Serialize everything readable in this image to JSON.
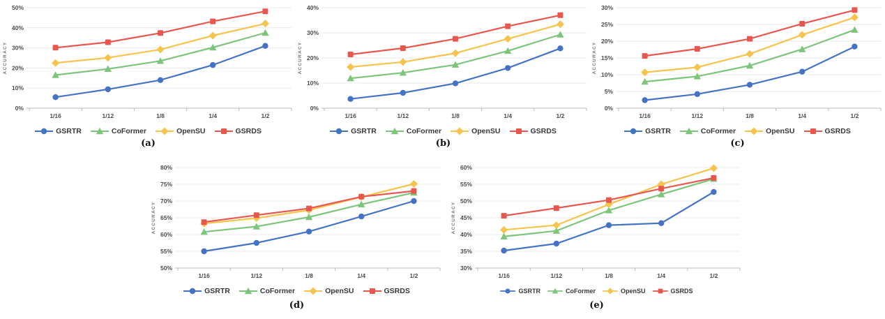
{
  "figure": {
    "ylabel": "ACCURACY",
    "series_styles": [
      {
        "name": "GSRTR",
        "color": "#4472c4",
        "marker": "circle"
      },
      {
        "name": "CoFormer",
        "color": "#7dc57b",
        "marker": "triangle"
      },
      {
        "name": "OpenSU",
        "color": "#f6c44d",
        "marker": "diamond"
      },
      {
        "name": "GSRDS",
        "color": "#e8574d",
        "marker": "square"
      }
    ],
    "grid_color": "#e9e9e9",
    "axis_color": "#b9b9b9",
    "tick_label_color": "#4a4a4a",
    "axis_title_color": "#757575"
  },
  "chart_data": [
    {
      "type": "line",
      "caption": "(a)",
      "ylabel": "ACCURACY",
      "xlabel": "",
      "categories": [
        "1/16",
        "1/12",
        "1/8",
        "1/4",
        "1/2"
      ],
      "ylim": [
        0,
        50
      ],
      "ytick_step": 10,
      "grid": true,
      "legend_position": "bottom",
      "series": [
        {
          "name": "GSRTR",
          "values": [
            5.5,
            9.4,
            14.0,
            21.5,
            31.0
          ]
        },
        {
          "name": "CoFormer",
          "values": [
            16.5,
            19.5,
            23.5,
            30.2,
            37.5
          ]
        },
        {
          "name": "OpenSU",
          "values": [
            22.5,
            25.1,
            29.2,
            36.1,
            42.1
          ]
        },
        {
          "name": "GSRDS",
          "values": [
            30.1,
            32.8,
            37.4,
            43.2,
            48.2
          ]
        }
      ]
    },
    {
      "type": "line",
      "caption": "(b)",
      "ylabel": "ACCURACY",
      "xlabel": "",
      "categories": [
        "1/16",
        "1/12",
        "1/8",
        "1/4",
        "1/2"
      ],
      "ylim": [
        0,
        40
      ],
      "ytick_step": 10,
      "grid": true,
      "legend_position": "bottom",
      "series": [
        {
          "name": "GSRTR",
          "values": [
            3.7,
            6.1,
            9.9,
            16.0,
            23.8
          ]
        },
        {
          "name": "CoFormer",
          "values": [
            11.9,
            14.1,
            17.3,
            22.8,
            29.3
          ]
        },
        {
          "name": "OpenSU",
          "values": [
            16.4,
            18.4,
            21.9,
            27.6,
            33.4
          ]
        },
        {
          "name": "GSRDS",
          "values": [
            21.4,
            23.9,
            27.6,
            32.6,
            37.0
          ]
        }
      ]
    },
    {
      "type": "line",
      "caption": "(c)",
      "ylabel": "ACCURACY",
      "xlabel": "",
      "categories": [
        "1/16",
        "1/12",
        "1/8",
        "1/4",
        "1/2"
      ],
      "ylim": [
        0,
        30
      ],
      "ytick_step": 5,
      "grid": true,
      "legend_position": "bottom",
      "series": [
        {
          "name": "GSRTR",
          "values": [
            2.4,
            4.2,
            7.0,
            10.9,
            18.4
          ]
        },
        {
          "name": "CoFormer",
          "values": [
            7.9,
            9.5,
            12.7,
            17.6,
            23.4
          ]
        },
        {
          "name": "OpenSU",
          "values": [
            10.7,
            12.2,
            16.2,
            21.9,
            27.1
          ]
        },
        {
          "name": "GSRDS",
          "values": [
            15.6,
            17.7,
            20.7,
            25.2,
            29.3
          ]
        }
      ]
    },
    {
      "type": "line",
      "caption": "(d)",
      "ylabel": "ACCURACY",
      "xlabel": "",
      "categories": [
        "1/16",
        "1/12",
        "1/8",
        "1/4",
        "1/2"
      ],
      "ylim": [
        50,
        80
      ],
      "ytick_step": 5,
      "grid": true,
      "legend_position": "bottom",
      "series": [
        {
          "name": "GSRTR",
          "values": [
            55.0,
            57.5,
            60.9,
            65.4,
            70.0
          ]
        },
        {
          "name": "CoFormer",
          "values": [
            60.8,
            62.4,
            65.2,
            69.0,
            72.5
          ]
        },
        {
          "name": "OpenSU",
          "values": [
            63.3,
            64.9,
            67.3,
            71.2,
            75.1
          ]
        },
        {
          "name": "GSRDS",
          "values": [
            63.7,
            65.8,
            67.8,
            71.3,
            73.0
          ]
        }
      ]
    },
    {
      "type": "line",
      "caption": "(e)",
      "ylabel": "ACCURACY",
      "xlabel": "",
      "categories": [
        "1/16",
        "1/12",
        "1/8",
        "1/4",
        "1/2"
      ],
      "ylim": [
        30,
        60
      ],
      "ytick_step": 5,
      "grid": true,
      "legend_position": "bottom",
      "series": [
        {
          "name": "GSRTR",
          "values": [
            35.2,
            37.3,
            42.8,
            43.4,
            52.7
          ]
        },
        {
          "name": "CoFormer",
          "values": [
            39.4,
            41.1,
            47.2,
            52.0,
            56.6
          ]
        },
        {
          "name": "OpenSU",
          "values": [
            41.4,
            42.8,
            49.0,
            55.0,
            59.8
          ]
        },
        {
          "name": "GSRDS",
          "values": [
            45.6,
            47.9,
            50.3,
            53.7,
            56.9
          ]
        }
      ]
    }
  ]
}
